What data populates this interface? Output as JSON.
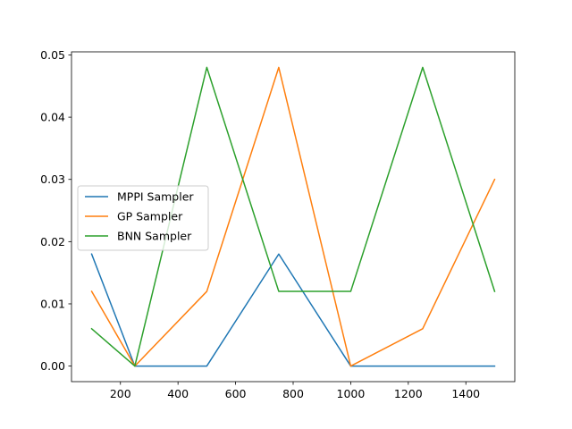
{
  "chart_data": {
    "type": "line",
    "title": "",
    "xlabel": "",
    "ylabel": "",
    "x": [
      100,
      250,
      500,
      750,
      1000,
      1250,
      1500
    ],
    "xlim": [
      30,
      1570
    ],
    "ylim": [
      -0.0025,
      0.0505
    ],
    "xticks": [
      200,
      400,
      600,
      800,
      1000,
      1200,
      1400
    ],
    "yticks": [
      0.0,
      0.01,
      0.02,
      0.03,
      0.04,
      0.05
    ],
    "ytick_labels": [
      "0.00",
      "0.01",
      "0.02",
      "0.03",
      "0.04",
      "0.05"
    ],
    "grid": false,
    "legend_position": "center-left",
    "series": [
      {
        "name": "MPPI Sampler",
        "color": "#1f77b4",
        "values": [
          0.018,
          0.0,
          0.0,
          0.018,
          0.0,
          0.0,
          0.0
        ]
      },
      {
        "name": "GP Sampler",
        "color": "#ff7f0e",
        "values": [
          0.012,
          0.0,
          0.012,
          0.048,
          0.0,
          0.006,
          0.03
        ]
      },
      {
        "name": "BNN Sampler",
        "color": "#2ca02c",
        "values": [
          0.006,
          0.0,
          0.048,
          0.012,
          0.012,
          0.048,
          0.012
        ]
      }
    ]
  }
}
